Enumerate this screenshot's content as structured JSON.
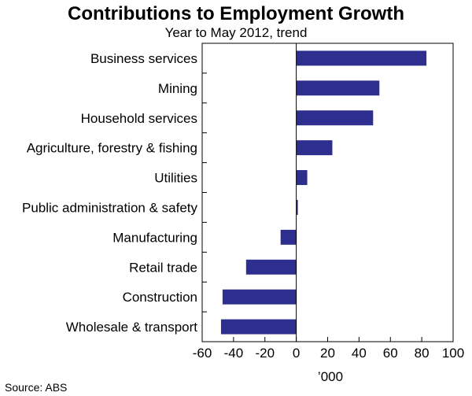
{
  "chart_data": {
    "type": "bar",
    "orientation": "horizontal",
    "title": "Contributions to Employment Growth",
    "subtitle": "Year to May 2012, trend",
    "categories": [
      "Business services",
      "Mining",
      "Household services",
      "Agriculture, forestry & fishing",
      "Utilities",
      "Public administration & safety",
      "Manufacturing",
      "Retail trade",
      "Construction",
      "Wholesale & transport"
    ],
    "values": [
      83,
      53,
      49,
      23,
      7,
      1,
      -10,
      -32,
      -47,
      -48
    ],
    "xlim": [
      -60,
      100
    ],
    "xticks": [
      -60,
      -40,
      -20,
      0,
      20,
      40,
      60,
      80,
      100
    ],
    "xlabel": "’000",
    "source": "Source: ABS",
    "bar_color": "#2e2e8f"
  }
}
